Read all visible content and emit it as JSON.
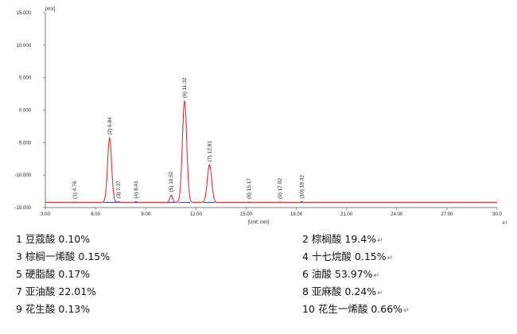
{
  "chart_data": {
    "type": "line",
    "unit_y": "[mV]",
    "xlabel": "[Unit: min]",
    "xlim": [
      3.0,
      30.0
    ],
    "ylim": [
      -15.0,
      15.0
    ],
    "x_ticks": [
      "3.00",
      "6.00",
      "9.00",
      "12.00",
      "15.00",
      "18.00",
      "21.00",
      "24.00",
      "27.00",
      "30.0"
    ],
    "y_ticks": [
      "15.000",
      "10.000",
      "5.000",
      "0.000",
      "-5.000",
      "-10.000",
      "-15.000"
    ],
    "baseline": -14.2,
    "series_color": "#e03030",
    "peaks": [
      {
        "label": "(1) 4.76",
        "x": 4.76,
        "y": -14.15
      },
      {
        "label": "(2) 6.84",
        "x": 6.84,
        "y": -4.3
      },
      {
        "label": "(3) 7.37",
        "x": 7.37,
        "y": -14.1
      },
      {
        "label": "(4) 8.41",
        "x": 8.41,
        "y": -14.1
      },
      {
        "label": "(5) 10.52",
        "x": 10.52,
        "y": -13.1
      },
      {
        "label": "(6) 11.32",
        "x": 11.32,
        "y": 1.4
      },
      {
        "label": "(7) 12.81",
        "x": 12.81,
        "y": -8.4
      },
      {
        "label": "(8) 15.17",
        "x": 15.17,
        "y": -14.15
      },
      {
        "label": "(9) 17.02",
        "x": 17.02,
        "y": -14.15
      },
      {
        "label": "(10) 18.32",
        "x": 18.32,
        "y": -14.1
      }
    ]
  },
  "legend": [
    [
      "1 豆蔻酸  0.10%",
      "2 棕榈酸  19.4%"
    ],
    [
      "3  棕榈一烯酸  0.15%",
      " 4 十七烷酸  0.15%"
    ],
    [
      "5 硬脂酸  0.17%",
      "6 油酸  53.97%"
    ],
    [
      "7 亚油酸  22.01%",
      "8 亚麻酸  0.24%"
    ],
    [
      "9 花生酸  0.13%",
      "10 花生一烯酸  0.66%"
    ]
  ],
  "return_mark": "↵"
}
